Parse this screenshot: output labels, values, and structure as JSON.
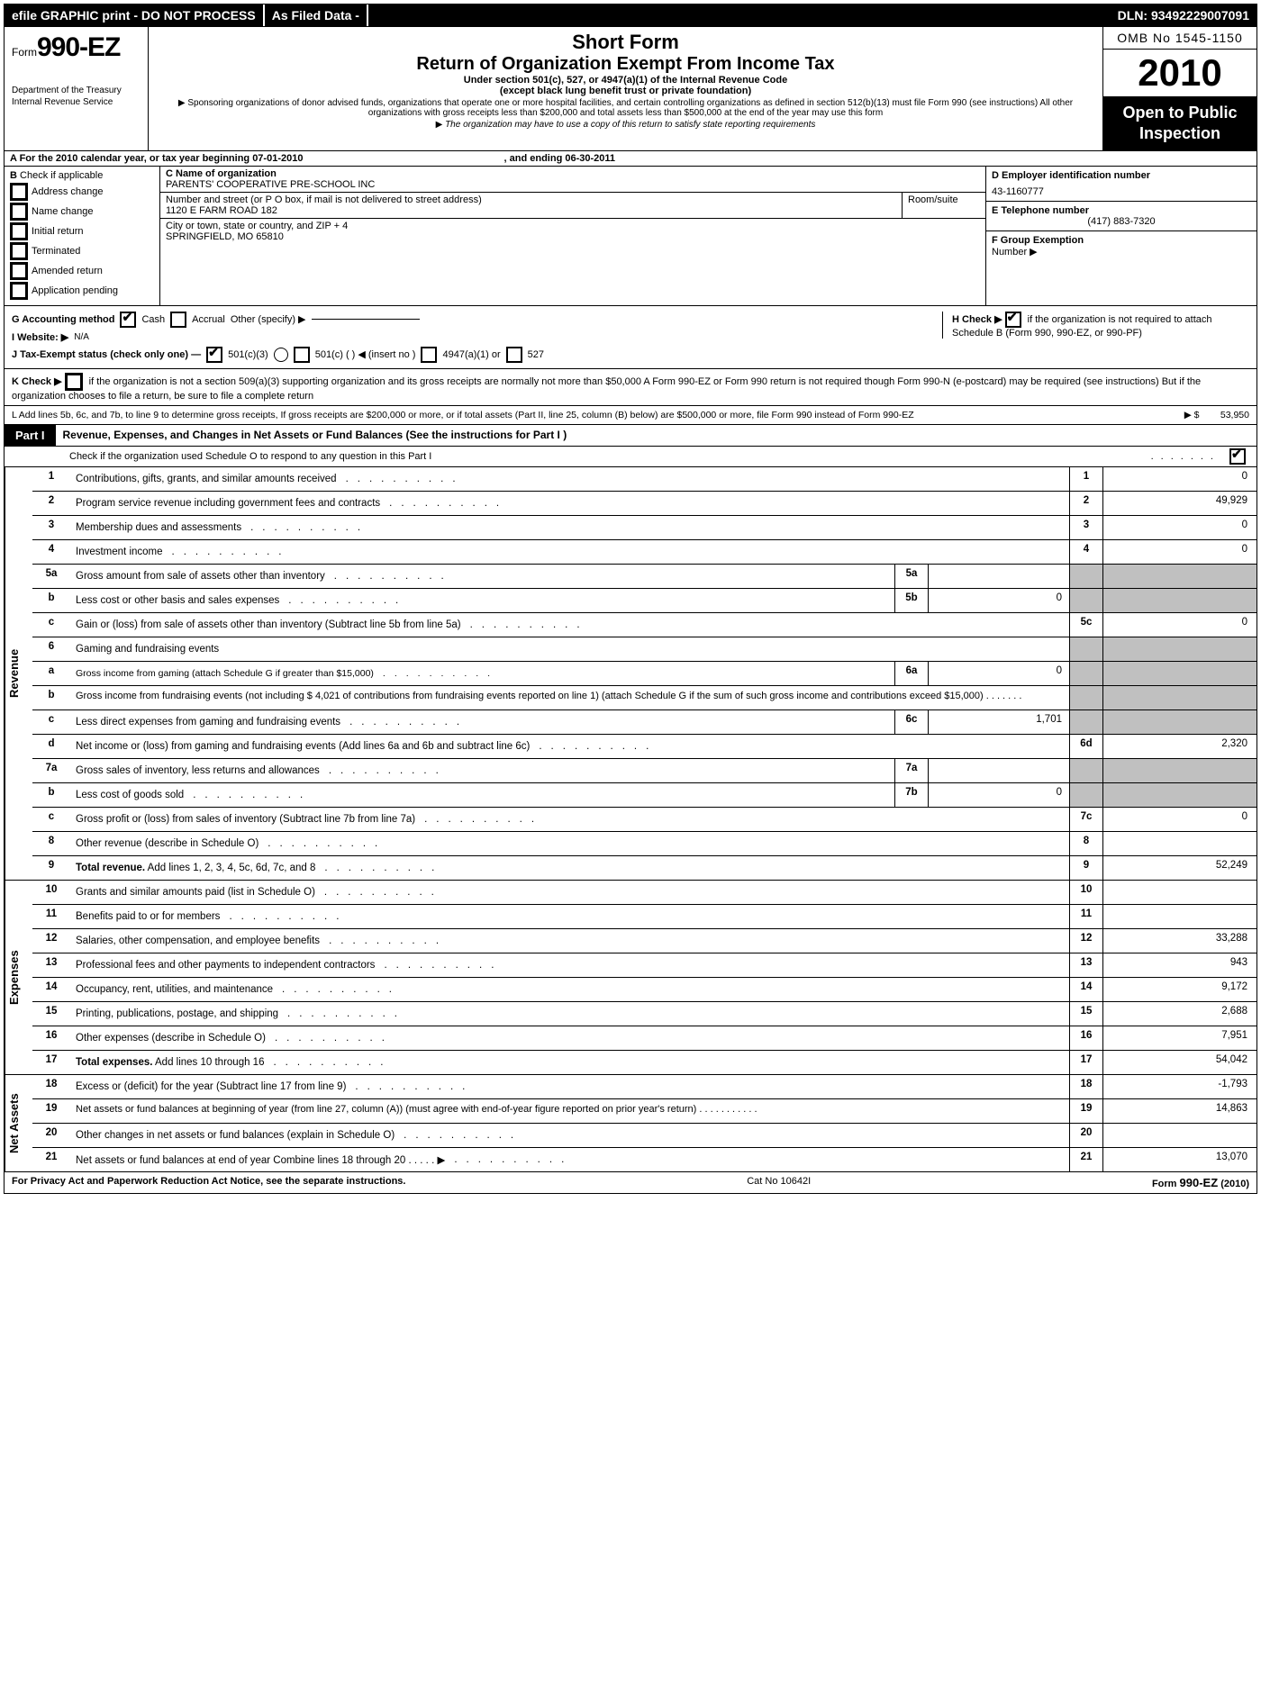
{
  "topbar": {
    "left": "efile GRAPHIC print - DO NOT PROCESS",
    "mid": "As Filed Data -",
    "right": "DLN: 93492229007091"
  },
  "header": {
    "form_prefix": "Form",
    "form_number": "990-EZ",
    "dept1": "Department of the Treasury",
    "dept2": "Internal Revenue Service",
    "short": "Short Form",
    "title": "Return of Organization Exempt From Income Tax",
    "sub1": "Under section 501(c), 527, or 4947(a)(1) of the Internal Revenue Code",
    "sub2": "(except black lung benefit trust or private foundation)",
    "note1": "Sponsoring organizations of donor advised funds, organizations that operate one or more hospital facilities, and certain controlling organizations as defined in section 512(b)(13) must file Form 990 (see instructions) All other organizations with gross receipts less than $200,000 and total assets less than $500,000 at the end of the year may use this form",
    "note2": "The organization may have to use a copy of this return to satisfy state reporting requirements",
    "omb": "OMB No 1545-1150",
    "year": "2010",
    "open1": "Open to Public",
    "open2": "Inspection"
  },
  "rowA": {
    "a_label": "A  For the 2010 calendar year, or tax year beginning 07-01-2010",
    "a_end": ", and ending 06-30-2011"
  },
  "colB": {
    "heading": "B",
    "items": [
      "Check if applicable",
      "Address change",
      "Name change",
      "Initial return",
      "Terminated",
      "Amended return",
      "Application pending"
    ]
  },
  "colC": {
    "c_label": "C Name of organization",
    "c_name": "PARENTS' COOPERATIVE PRE-SCHOOL INC",
    "street_label": "Number and street (or P  O  box, if mail is not delivered to street address)",
    "room_label": "Room/suite",
    "street": "1120 E FARM ROAD 182",
    "city_label": "City or town, state or country, and ZIP + 4",
    "city": "SPRINGFIELD, MO  65810"
  },
  "colD": {
    "d_label": "D Employer identification number",
    "d_val": "43-1160777",
    "e_label": "E Telephone number",
    "e_val": "(417) 883-7320",
    "f_label": "F Group Exemption",
    "f_label2": "Number ▶"
  },
  "gij": {
    "g": "G Accounting method",
    "g_cash": "Cash",
    "g_accrual": "Accrual",
    "g_other": "Other (specify) ▶",
    "i": "I Website: ▶",
    "i_val": "N/A",
    "j": "J Tax-Exempt status (check only one) —",
    "j1": "501(c)(3)",
    "j2": "501(c) (   ) ◀ (insert no )",
    "j3": "4947(a)(1) or",
    "j4": "527",
    "h1": "H  Check ▶",
    "h2": "if the organization is not required to attach Schedule B (Form 990, 990-EZ, or 990-PF)"
  },
  "kl": {
    "k": "K Check ▶",
    "k_text": "if the organization is not a section 509(a)(3) supporting organization and its gross receipts are normally not more than $50,000  A Form 990-EZ or Form 990 return is not required though Form 990-N (e-postcard) may be required (see instructions)  But if the organization chooses to file a return, be sure to file a complete return",
    "l": "L Add lines 5b, 6c, and 7b, to line 9 to determine gross receipts, If gross receipts are $200,000 or more, or if total assets (Part II, line 25, column (B) below) are $500,000 or more, file Form 990 instead of Form 990-EZ",
    "l_amount_label": "▶ $",
    "l_amount": "53,950"
  },
  "part1": {
    "tab": "Part I",
    "title": "Revenue, Expenses, and Changes in Net Assets or Fund Balances (See the instructions for Part I )",
    "check_text": "Check if the organization used Schedule O to respond to any question in this Part I"
  },
  "sections": [
    {
      "label": "Revenue",
      "lines": [
        {
          "no": "1",
          "desc": "Contributions, gifts, grants, and similar amounts received",
          "fn": "1",
          "fv": "0"
        },
        {
          "no": "2",
          "desc": "Program service revenue including government fees and contracts",
          "fn": "2",
          "fv": "49,929"
        },
        {
          "no": "3",
          "desc": "Membership dues and assessments",
          "fn": "3",
          "fv": "0"
        },
        {
          "no": "4",
          "desc": "Investment income",
          "fn": "4",
          "fv": "0"
        },
        {
          "no": "5a",
          "desc": "Gross amount from sale of assets other than inventory",
          "sn": "5a",
          "sv": "",
          "shade": true
        },
        {
          "no": "b",
          "desc": "Less  cost or other basis and sales expenses",
          "sn": "5b",
          "sv": "0",
          "shade": true
        },
        {
          "no": "c",
          "desc": "Gain or (loss) from sale of assets other than inventory (Subtract line 5b from line 5a)",
          "fn": "5c",
          "fv": "0"
        },
        {
          "no": "6",
          "desc": "Gaming and fundraising events",
          "plain": true,
          "shade": true
        },
        {
          "no": "a",
          "desc": "Gross income from gaming (attach Schedule G if greater than $15,000)",
          "sn": "6a",
          "sv": "0",
          "shade": true,
          "small": true
        },
        {
          "no": "b",
          "multiline": "Gross income from fundraising events (not including $ 4,021 of contributions from fundraising events reported on line 1) (attach Schedule G if the sum of such gross income and contributions exceed $15,000)     .    .    .    .    .    .    .",
          "shade": true
        },
        {
          "no": "c",
          "desc": "Less  direct expenses from gaming and fundraising events",
          "sn": "6c",
          "sv": "1,701",
          "shade": true
        },
        {
          "no": "d",
          "desc": "Net income or (loss) from gaming and fundraising events (Add lines 6a and 6b and subtract line 6c)",
          "fn": "6d",
          "fv": "2,320"
        },
        {
          "no": "7a",
          "desc": "Gross sales of inventory, less returns and allowances",
          "sn": "7a",
          "sv": "",
          "shade": true
        },
        {
          "no": "b",
          "desc": "Less  cost of goods sold",
          "sn": "7b",
          "sv": "0",
          "shade": true
        },
        {
          "no": "c",
          "desc": "Gross profit or (loss) from sales of inventory (Subtract line 7b from line 7a)",
          "fn": "7c",
          "fv": "0"
        },
        {
          "no": "8",
          "desc": "Other revenue (describe in Schedule O)",
          "fn": "8",
          "fv": ""
        },
        {
          "no": "9",
          "desc": "Total revenue. Add lines 1, 2, 3, 4, 5c, 6d, 7c, and 8",
          "fn": "9",
          "fv": "52,249",
          "bold": true
        }
      ]
    },
    {
      "label": "Expenses",
      "lines": [
        {
          "no": "10",
          "desc": "Grants and similar amounts paid (list in Schedule O)",
          "fn": "10",
          "fv": ""
        },
        {
          "no": "11",
          "desc": "Benefits paid to or for members",
          "fn": "11",
          "fv": ""
        },
        {
          "no": "12",
          "desc": "Salaries, other compensation, and employee benefits",
          "fn": "12",
          "fv": "33,288"
        },
        {
          "no": "13",
          "desc": "Professional fees and other payments to independent contractors",
          "fn": "13",
          "fv": "943"
        },
        {
          "no": "14",
          "desc": "Occupancy, rent, utilities, and maintenance",
          "fn": "14",
          "fv": "9,172"
        },
        {
          "no": "15",
          "desc": "Printing, publications, postage, and shipping",
          "fn": "15",
          "fv": "2,688"
        },
        {
          "no": "16",
          "desc": "Other expenses (describe in Schedule O)",
          "fn": "16",
          "fv": "7,951"
        },
        {
          "no": "17",
          "desc": "Total expenses. Add lines 10 through 16",
          "fn": "17",
          "fv": "54,042",
          "bold": true
        }
      ]
    },
    {
      "label": "Net Assets",
      "lines": [
        {
          "no": "18",
          "desc": "Excess or (deficit) for the year (Subtract line 17 from line 9)",
          "fn": "18",
          "fv": "-1,793"
        },
        {
          "no": "19",
          "multiline": "Net assets or fund balances at beginning of year (from line 27, column (A)) (must agree with end-of-year figure reported on prior year's return)     .    .    .    .    .    .    .    .    .    .    .",
          "fn": "19",
          "fv": "14,863"
        },
        {
          "no": "20",
          "desc": "Other changes in net assets or fund balances (explain in Schedule O)",
          "fn": "20",
          "fv": ""
        },
        {
          "no": "21",
          "desc": "Net assets or fund balances at end of year  Combine lines 18 through 20     .    .    .    .    . ▶",
          "fn": "21",
          "fv": "13,070"
        }
      ]
    }
  ],
  "footer": {
    "left": "For Privacy Act and Paperwork Reduction Act Notice, see the separate instructions.",
    "mid": "Cat  No  10642I",
    "right_prefix": "Form ",
    "right_form": "990-EZ",
    "right_suffix": " (2010)"
  }
}
